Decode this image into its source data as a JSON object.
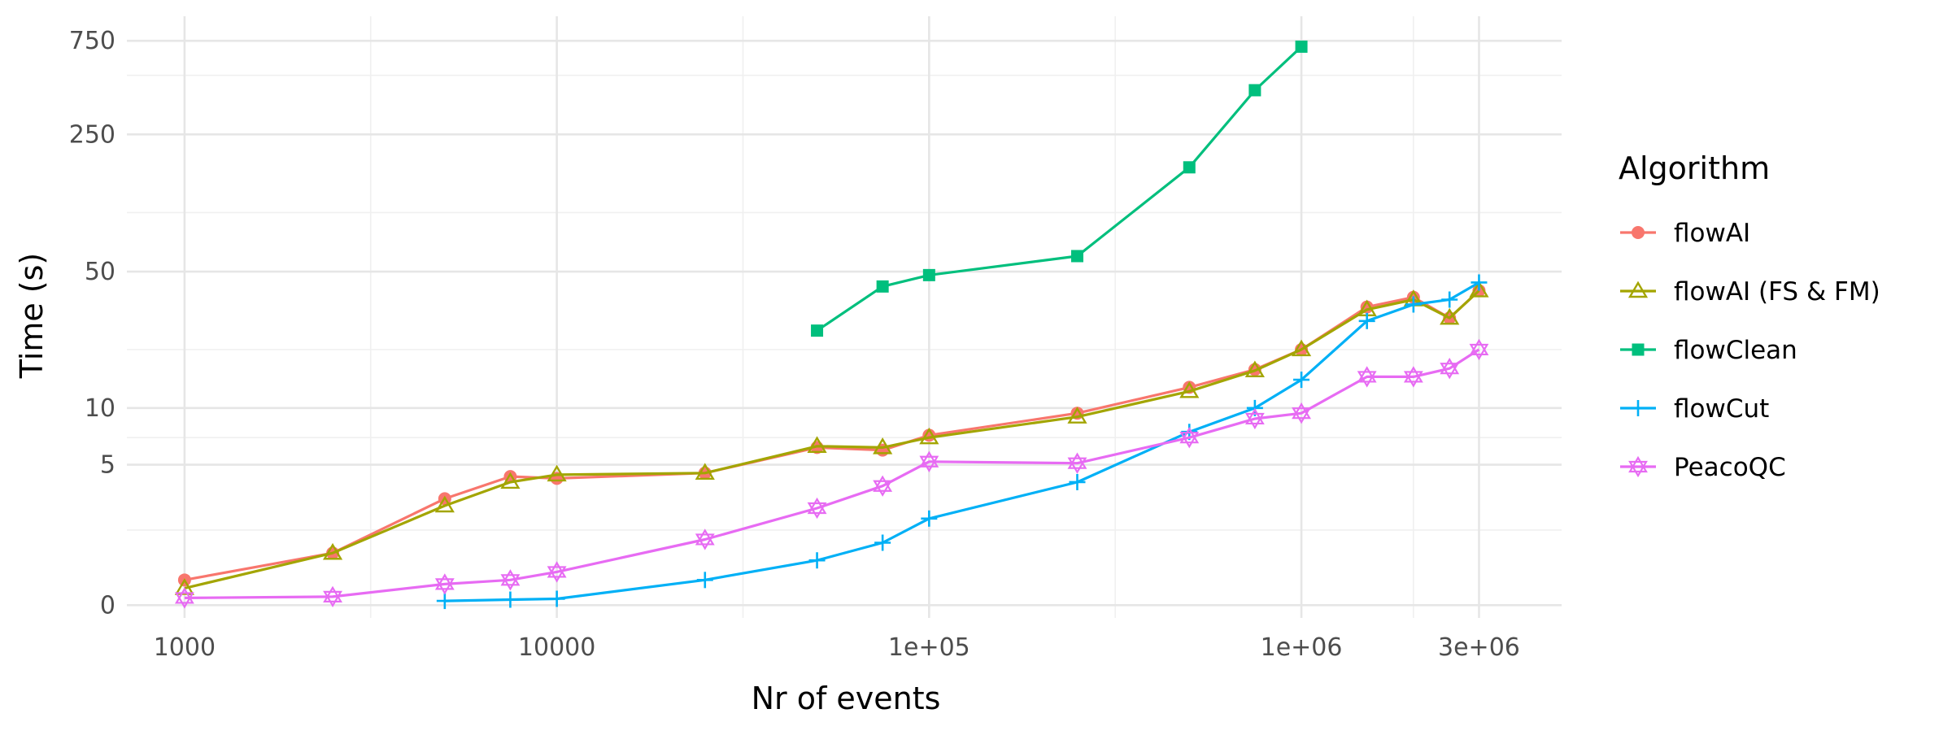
{
  "chart_data": {
    "type": "line",
    "title": "",
    "xlabel": "Nr of events",
    "ylabel": "Time (s)",
    "x_scale": "log10",
    "y_scale": "pseudo-log",
    "xlim": [
      700,
      5000000
    ],
    "ylim": [
      -0.3,
      1000
    ],
    "x_ticks": [
      1000,
      10000,
      100000,
      1000000,
      3000000
    ],
    "x_tick_labels": [
      "1000",
      "10000",
      "1e+05",
      "1e+06",
      "3e+06"
    ],
    "x_minor_ticks": [
      3162,
      31623,
      316228,
      2000000
    ],
    "y_ticks": [
      0,
      5,
      10,
      50,
      250,
      750
    ],
    "y_tick_labels": [
      "0",
      "5",
      "10",
      "50",
      "250",
      "750"
    ],
    "y_minor_ticks": [
      2,
      7,
      20,
      100,
      500
    ],
    "grid": true,
    "legend": {
      "title": "Algorithm",
      "position": "right"
    },
    "series": [
      {
        "name": "flowAI",
        "color": "#F8766D",
        "marker": "circle",
        "x": [
          1000,
          2500,
          5000,
          7500,
          10000,
          25000,
          50000,
          75000,
          100000,
          250000,
          500000,
          750000,
          1000000,
          1500000,
          2000000,
          2500000,
          3000000
        ],
        "y": [
          0.6,
          1.3,
          3.2,
          4.3,
          4.2,
          4.5,
          6.2,
          6.0,
          7.2,
          9.4,
          12.8,
          15.8,
          20.0,
          33.0,
          37.0,
          29.0,
          40.0
        ]
      },
      {
        "name": "flowAI (FS & FM)",
        "color": "#A3A500",
        "marker": "triangle",
        "x": [
          1000,
          2500,
          5000,
          7500,
          10000,
          25000,
          50000,
          75000,
          100000,
          250000,
          500000,
          750000,
          1000000,
          1500000,
          2000000,
          2500000,
          3000000
        ],
        "y": [
          0.4,
          1.3,
          2.9,
          4.0,
          4.4,
          4.5,
          6.3,
          6.2,
          7.0,
          9.0,
          12.2,
          15.6,
          20.0,
          32.0,
          36.0,
          29.0,
          40.0
        ]
      },
      {
        "name": "flowClean",
        "color": "#00BF7D",
        "marker": "square",
        "x": [
          50000,
          75000,
          100000,
          250000,
          500000,
          750000,
          1000000
        ],
        "y": [
          25.0,
          42.0,
          48.0,
          60.0,
          170.0,
          420.0,
          700.0
        ]
      },
      {
        "name": "flowCut",
        "color": "#00B0F6",
        "marker": "plus",
        "x": [
          5000,
          7500,
          10000,
          25000,
          50000,
          75000,
          100000,
          250000,
          500000,
          750000,
          1000000,
          1500000,
          2000000,
          2500000,
          3000000
        ],
        "y": [
          0.1,
          0.13,
          0.15,
          0.6,
          1.1,
          1.6,
          2.4,
          4.0,
          7.5,
          10.0,
          14.0,
          28.0,
          34.0,
          36.0,
          44.0
        ]
      },
      {
        "name": "PeacoQC",
        "color": "#E76BF3",
        "marker": "star",
        "x": [
          1000,
          2500,
          5000,
          7500,
          10000,
          25000,
          50000,
          75000,
          100000,
          250000,
          500000,
          750000,
          1000000,
          1500000,
          2000000,
          2500000,
          3000000
        ],
        "y": [
          0.17,
          0.2,
          0.5,
          0.6,
          0.8,
          1.7,
          2.8,
          3.8,
          5.2,
          5.1,
          7.0,
          8.8,
          9.4,
          14.5,
          14.5,
          16.0,
          20.0
        ]
      }
    ]
  }
}
